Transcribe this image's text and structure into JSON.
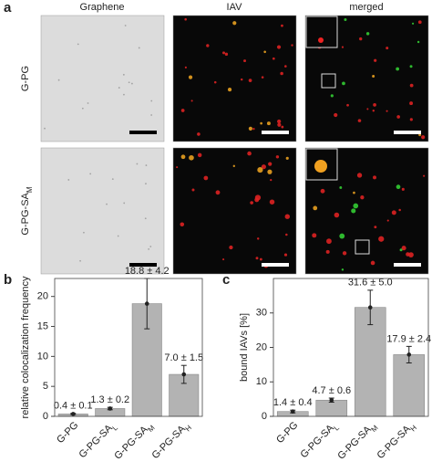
{
  "panel_a": {
    "label": "a",
    "columns": [
      "Graphene",
      "IAV",
      "merged"
    ],
    "rows": [
      {
        "label": "G-PG"
      },
      {
        "label": "G-PG-SA",
        "subscript": "M"
      }
    ]
  },
  "chart_data": [
    {
      "type": "bar",
      "panel_label": "b",
      "ylabel": "relative colocalization frequency",
      "categories": [
        "G-PG",
        "G-PG-SA",
        "G-PG-SA",
        "G-PG-SA"
      ],
      "category_subscripts": [
        null,
        "L",
        "M",
        "H"
      ],
      "values": [
        0.4,
        1.3,
        18.8,
        7.0
      ],
      "errors": [
        0.1,
        0.2,
        4.2,
        1.5
      ],
      "value_labels": [
        "0.4 ± 0.1",
        "1.3 ± 0.2",
        "18.8 ± 4.2",
        "7.0 ± 1.5"
      ],
      "color": "#b3b3b3",
      "ylim": [
        0,
        23
      ],
      "yticks": [
        0,
        5,
        10,
        15,
        20
      ]
    },
    {
      "type": "bar",
      "panel_label": "c",
      "ylabel": "bound IAVs [%]",
      "categories": [
        "G-PG",
        "G-PG-SA",
        "G-PG-SA",
        "G-PG-SA"
      ],
      "category_subscripts": [
        null,
        "L",
        "M",
        "H"
      ],
      "values": [
        1.4,
        4.7,
        31.6,
        17.9
      ],
      "errors": [
        0.4,
        0.6,
        5.0,
        2.4
      ],
      "value_labels": [
        "1.4 ± 0.4",
        "4.7 ± 0.6",
        "31.6 ± 5.0",
        "17.9 ± 2.4"
      ],
      "color": "#b3b3b3",
      "ylim": [
        0,
        40
      ],
      "yticks": [
        0,
        10,
        20,
        30
      ]
    }
  ]
}
